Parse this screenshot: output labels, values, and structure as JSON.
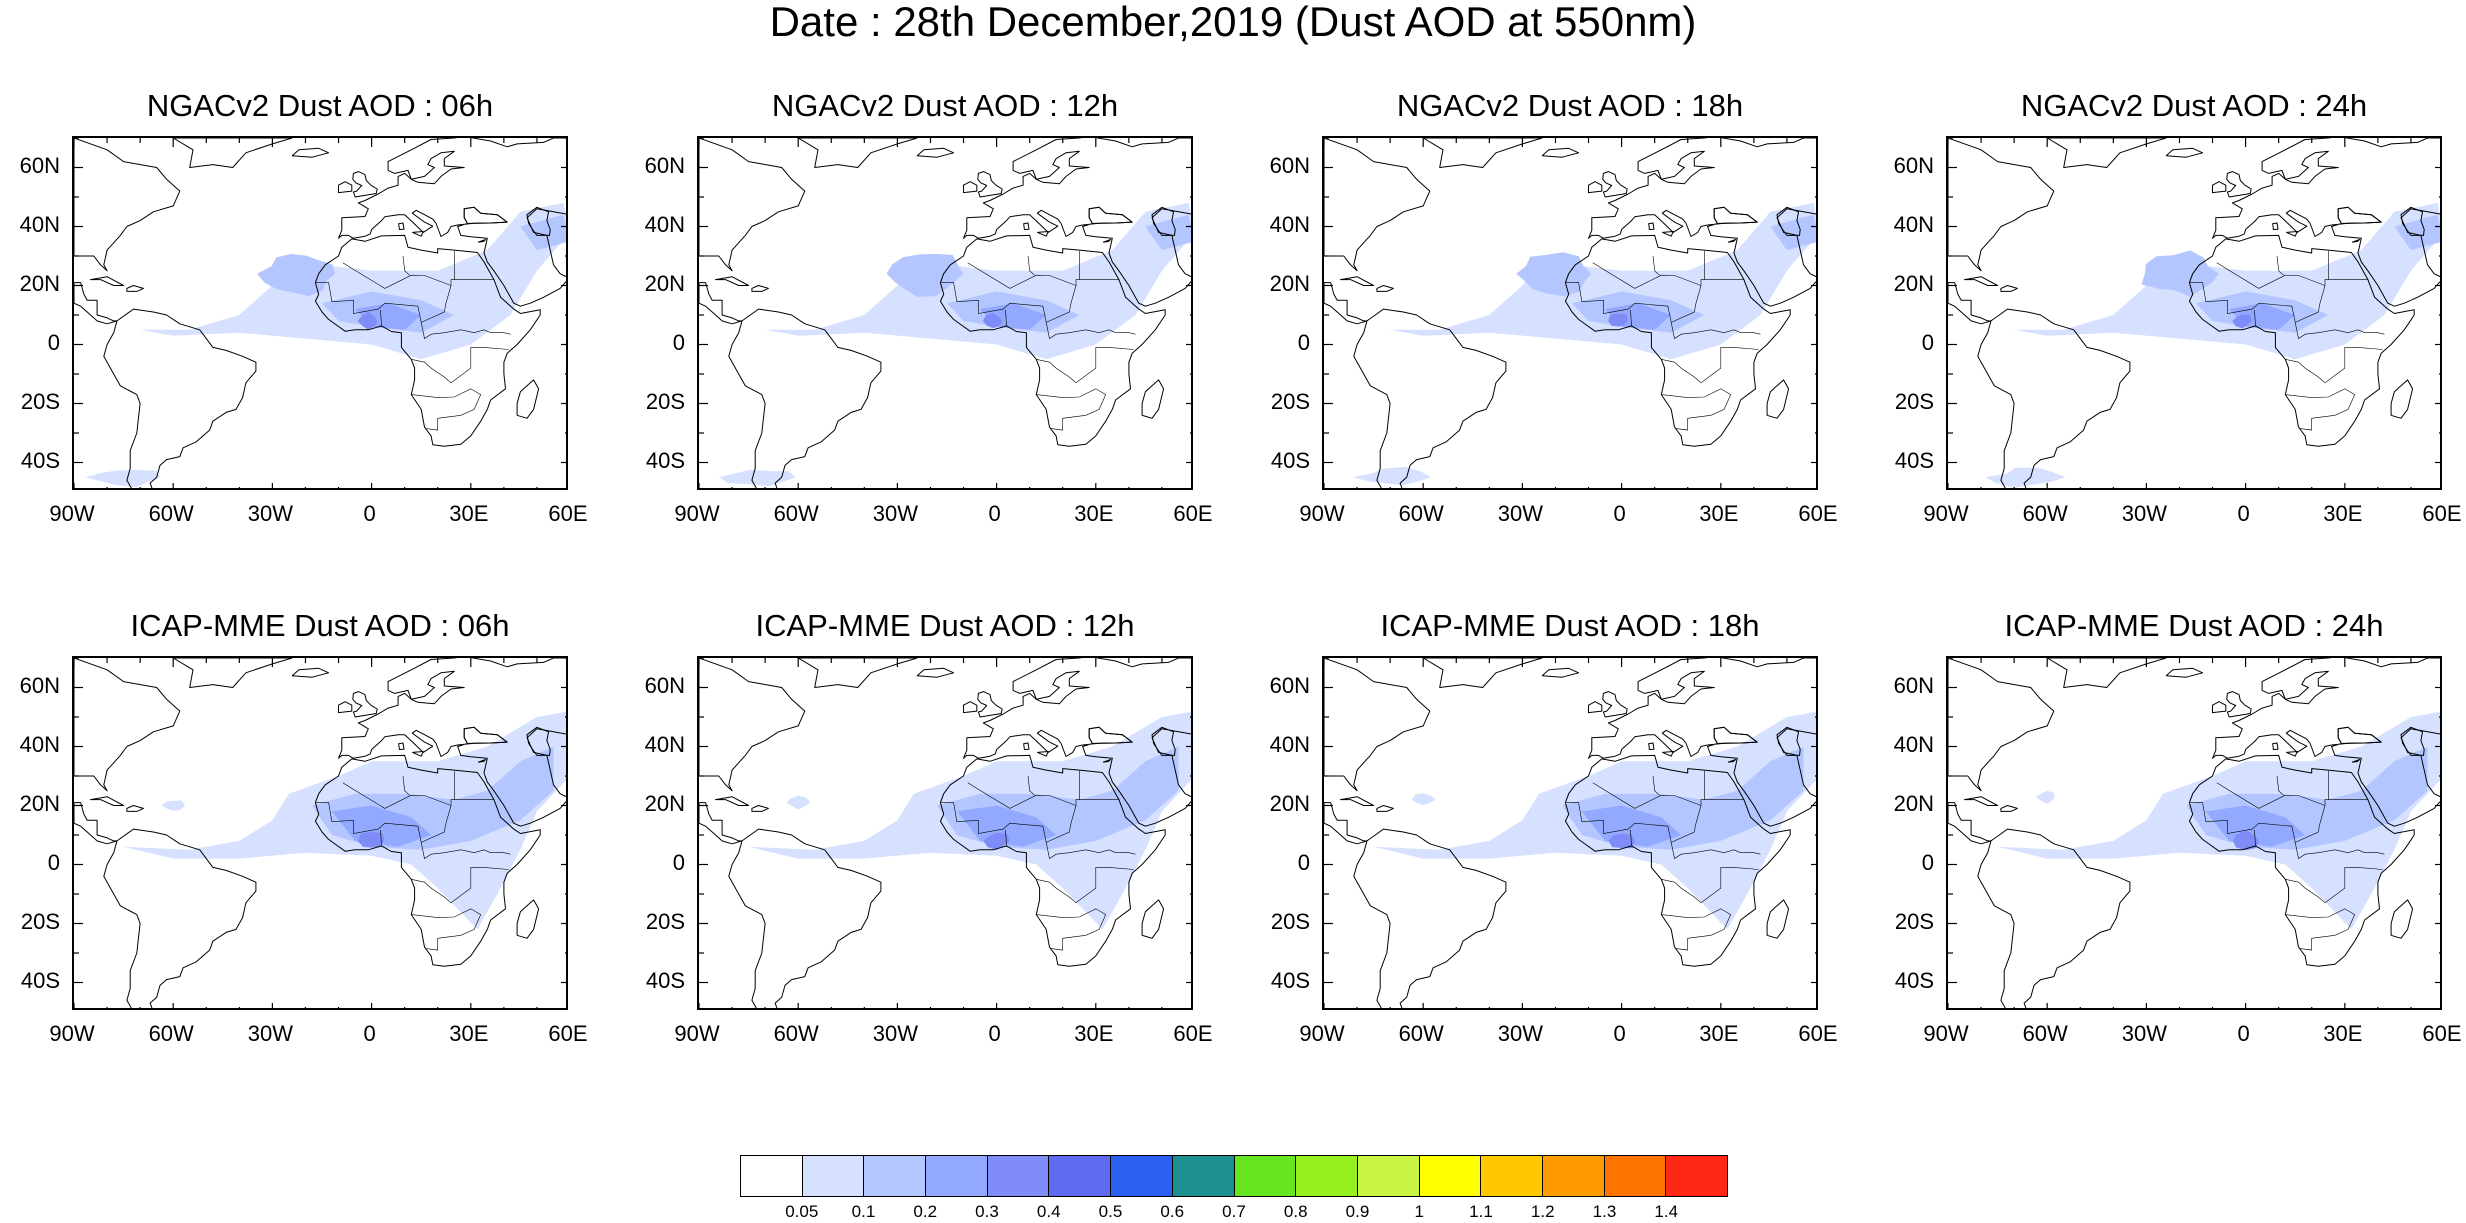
{
  "title": "Date : 28th December,2019 (Dust AOD at 550nm)",
  "panels": [
    {
      "title": "NGACv2 Dust AOD : 06h",
      "model": "NGACv2",
      "hour": "06h"
    },
    {
      "title": "NGACv2 Dust AOD : 12h",
      "model": "NGACv2",
      "hour": "12h"
    },
    {
      "title": "NGACv2 Dust AOD : 18h",
      "model": "NGACv2",
      "hour": "18h"
    },
    {
      "title": "NGACv2 Dust AOD : 24h",
      "model": "NGACv2",
      "hour": "24h"
    },
    {
      "title": "ICAP-MME Dust AOD : 06h",
      "model": "ICAP-MME",
      "hour": "06h"
    },
    {
      "title": "ICAP-MME Dust AOD : 12h",
      "model": "ICAP-MME",
      "hour": "12h"
    },
    {
      "title": "ICAP-MME Dust AOD : 18h",
      "model": "ICAP-MME",
      "hour": "18h"
    },
    {
      "title": "ICAP-MME Dust AOD : 24h",
      "model": "ICAP-MME",
      "hour": "24h"
    }
  ],
  "lat_labels": [
    "60N",
    "40N",
    "20N",
    "0",
    "20S",
    "40S"
  ],
  "lat_values": [
    60,
    40,
    20,
    0,
    -20,
    -40
  ],
  "lon_labels": [
    "90W",
    "60W",
    "30W",
    "0",
    "30E",
    "60E"
  ],
  "lon_values": [
    -90,
    -60,
    -30,
    0,
    30,
    60
  ],
  "extent": {
    "lon": [
      -90,
      60
    ],
    "lat": [
      -50,
      70
    ]
  },
  "colorbar": {
    "levels": [
      "0.05",
      "0.1",
      "0.2",
      "0.3",
      "0.4",
      "0.5",
      "0.6",
      "0.7",
      "0.8",
      "0.9",
      "1",
      "1.1",
      "1.2",
      "1.3",
      "1.4"
    ],
    "colors": [
      "#ffffff",
      "#d6e0ff",
      "#b4c6ff",
      "#93a9ff",
      "#7f8cf7",
      "#5e6af0",
      "#2a5ff0",
      "#1c9090",
      "#66e61e",
      "#96f01e",
      "#c8f546",
      "#ffff00",
      "#ffc800",
      "#ff9b00",
      "#ff7300",
      "#ff2814"
    ]
  }
}
